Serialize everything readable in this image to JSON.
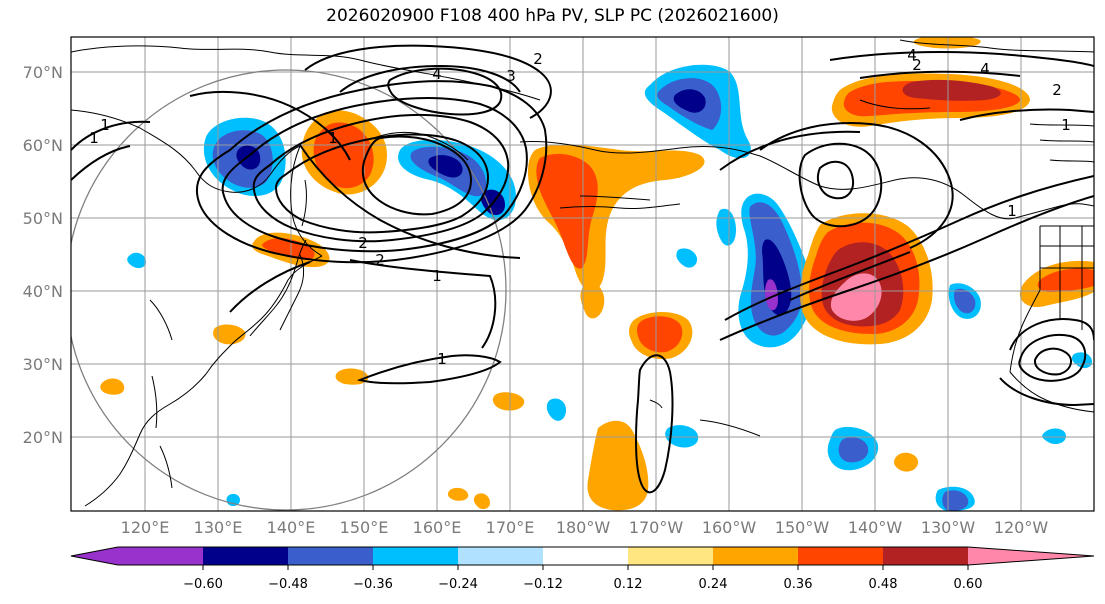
{
  "title": "2026020900 F108 400 hPa PV, SLP PC (2026021600)",
  "lat_labels": [
    "70°N",
    "60°N",
    "50°N",
    "40°N",
    "30°N",
    "20°N"
  ],
  "lon_labels": [
    "120°E",
    "130°E",
    "140°E",
    "150°E",
    "160°E",
    "170°E",
    "180°W",
    "170°W",
    "160°W",
    "150°W",
    "140°W",
    "130°W",
    "120°W"
  ],
  "colorbar": {
    "colors": [
      "#9932cc",
      "#00008b",
      "#3a5fcd",
      "#00bfff",
      "#b0e2ff",
      "#ffffff",
      "#ffe680",
      "#ffa500",
      "#ff4500",
      "#b22222",
      "#ff88aa"
    ],
    "tick_labels": [
      "−0.60",
      "−0.48",
      "−0.36",
      "−0.24",
      "−0.12",
      "0.12",
      "0.24",
      "0.36",
      "0.48",
      "0.60"
    ]
  },
  "contour_labels": [
    "2",
    "4",
    "3",
    "4",
    "1",
    "1",
    "1",
    "2",
    "2",
    "1",
    "1",
    "2",
    "1",
    "4",
    "2",
    "1"
  ]
}
